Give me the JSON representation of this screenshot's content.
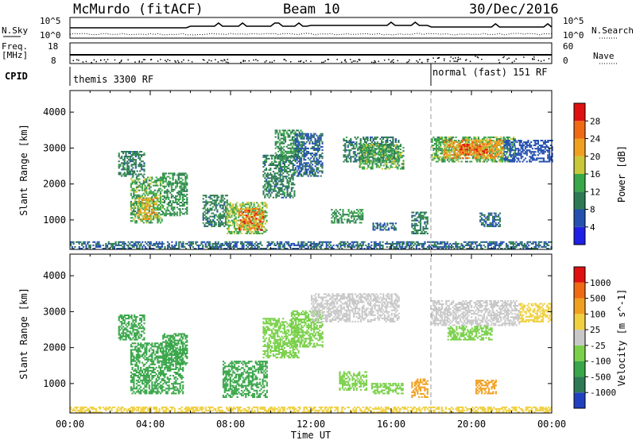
{
  "header": {
    "station": "McMurdo (fitACF)",
    "beam": "Beam 10",
    "date": "30/Dec/2016"
  },
  "top_panels": {
    "nsky_label": "N.Sky",
    "nsky_ticks": [
      "10^5",
      "10^0"
    ],
    "nsearch_label": "N.Search",
    "nsearch_ticks": [
      "10^5",
      "10^0"
    ],
    "freq_label_1": "Freq.",
    "freq_label_2": "[MHz]",
    "freq_ticks": [
      "18",
      "8"
    ],
    "nave_label": "Nave",
    "nave_ticks": [
      "60",
      "0"
    ],
    "cpid_label": "CPID",
    "cpid_segments": [
      {
        "text": "themis 3300 RF",
        "start_hour": 0
      },
      {
        "text": "normal (fast) 151 RF",
        "start_hour": 18
      }
    ]
  },
  "chart_data": [
    {
      "type": "heatmap",
      "panel": "Power",
      "xlabel": "",
      "ylabel": "Slant Range [km]",
      "x_range_hours": [
        0,
        24
      ],
      "ylim": [
        180,
        4600
      ],
      "y_ticks": [
        1000,
        2000,
        3000,
        4000
      ],
      "colorbar_label": "Power [dB]",
      "colorbar_ticks": [
        "4",
        "8",
        "12",
        "16",
        "20",
        "24",
        "28"
      ],
      "colorbar_colors": [
        "#1f1fe6",
        "#2450b0",
        "#2e7a55",
        "#3aa64a",
        "#c8c83a",
        "#f0a020",
        "#f06a14",
        "#e01010"
      ],
      "regions": [
        {
          "t0": 2.4,
          "t1": 3.7,
          "r0": 2200,
          "r1": 2900,
          "v": 10
        },
        {
          "t0": 3.0,
          "t1": 4.6,
          "r0": 900,
          "r1": 2200,
          "v": 14
        },
        {
          "t0": 3.4,
          "t1": 4.3,
          "r0": 1000,
          "r1": 1600,
          "v": 20
        },
        {
          "t0": 4.6,
          "t1": 5.8,
          "r0": 1100,
          "r1": 2300,
          "v": 12
        },
        {
          "t0": 6.6,
          "t1": 7.8,
          "r0": 800,
          "r1": 1700,
          "v": 10
        },
        {
          "t0": 7.8,
          "t1": 9.8,
          "r0": 600,
          "r1": 1500,
          "v": 16
        },
        {
          "t0": 8.4,
          "t1": 9.6,
          "r0": 700,
          "r1": 1300,
          "v": 24
        },
        {
          "t0": 9.6,
          "t1": 11.2,
          "r0": 1600,
          "r1": 2800,
          "v": 10
        },
        {
          "t0": 10.2,
          "t1": 11.6,
          "r0": 2700,
          "r1": 3500,
          "v": 12
        },
        {
          "t0": 11.2,
          "t1": 12.6,
          "r0": 2200,
          "r1": 3400,
          "v": 8
        },
        {
          "t0": 13.0,
          "t1": 14.6,
          "r0": 900,
          "r1": 1300,
          "v": 12
        },
        {
          "t0": 13.6,
          "t1": 16.4,
          "r0": 2600,
          "r1": 3300,
          "v": 10
        },
        {
          "t0": 14.4,
          "t1": 16.6,
          "r0": 2400,
          "r1": 3100,
          "v": 14
        },
        {
          "t0": 15.0,
          "t1": 16.2,
          "r0": 700,
          "r1": 900,
          "v": 8
        },
        {
          "t0": 17.0,
          "t1": 17.8,
          "r0": 600,
          "r1": 1200,
          "v": 10
        },
        {
          "t0": 18.0,
          "t1": 22.2,
          "r0": 2600,
          "r1": 3300,
          "v": 14
        },
        {
          "t0": 18.6,
          "t1": 21.6,
          "r0": 2700,
          "r1": 3200,
          "v": 22
        },
        {
          "t0": 19.4,
          "t1": 20.8,
          "r0": 2800,
          "r1": 3100,
          "v": 26
        },
        {
          "t0": 21.6,
          "t1": 24.0,
          "r0": 2600,
          "r1": 3200,
          "v": 6
        },
        {
          "t0": 20.4,
          "t1": 21.4,
          "r0": 800,
          "r1": 1200,
          "v": 8
        },
        {
          "t0": 0.0,
          "t1": 24.0,
          "r0": 180,
          "r1": 400,
          "v": 8
        }
      ]
    },
    {
      "type": "heatmap",
      "panel": "Velocity",
      "xlabel": "Time UT",
      "ylabel": "Slant Range [km]",
      "x_range_hours": [
        0,
        24
      ],
      "x_ticks": [
        "00:00",
        "04:00",
        "08:00",
        "12:00",
        "16:00",
        "20:00",
        "00:00"
      ],
      "ylim": [
        180,
        4600
      ],
      "y_ticks": [
        1000,
        2000,
        3000,
        4000
      ],
      "colorbar_label": "Velocity [m s^-1]",
      "colorbar_ticks": [
        "1000",
        "500",
        "100",
        "25",
        "-25",
        "-100",
        "-500",
        "-1000"
      ],
      "colorbar_colors": [
        "#2040c0",
        "#2e7a55",
        "#3aa64a",
        "#7ad04a",
        "#c8c8c8",
        "#f0d040",
        "#f0a020",
        "#f06a14",
        "#e01010"
      ],
      "regions": [
        {
          "t0": 2.4,
          "t1": 3.7,
          "r0": 2200,
          "r1": 2900,
          "v": 300
        },
        {
          "t0": 3.0,
          "t1": 5.6,
          "r0": 700,
          "r1": 2100,
          "v": 300
        },
        {
          "t0": 4.6,
          "t1": 5.8,
          "r0": 1500,
          "r1": 2400,
          "v": 150
        },
        {
          "t0": 7.6,
          "t1": 9.8,
          "r0": 600,
          "r1": 1600,
          "v": 300
        },
        {
          "t0": 9.6,
          "t1": 11.4,
          "r0": 1700,
          "r1": 2800,
          "v": 60
        },
        {
          "t0": 11.0,
          "t1": 12.6,
          "r0": 2000,
          "r1": 3000,
          "v": 60
        },
        {
          "t0": 12.0,
          "t1": 16.4,
          "r0": 2700,
          "r1": 3500,
          "v": 0
        },
        {
          "t0": 13.4,
          "t1": 14.8,
          "r0": 800,
          "r1": 1300,
          "v": 60
        },
        {
          "t0": 15.0,
          "t1": 16.6,
          "r0": 700,
          "r1": 1000,
          "v": 60
        },
        {
          "t0": 17.0,
          "t1": 17.8,
          "r0": 600,
          "r1": 1100,
          "v": -300
        },
        {
          "t0": 18.0,
          "t1": 22.4,
          "r0": 2600,
          "r1": 3300,
          "v": 0
        },
        {
          "t0": 18.8,
          "t1": 21.0,
          "r0": 2200,
          "r1": 2600,
          "v": 60
        },
        {
          "t0": 20.2,
          "t1": 21.2,
          "r0": 700,
          "r1": 1100,
          "v": -300
        },
        {
          "t0": 22.4,
          "t1": 24.0,
          "r0": 2700,
          "r1": 3200,
          "v": -60
        },
        {
          "t0": 0.0,
          "t1": 24.0,
          "r0": 180,
          "r1": 350,
          "v": -60
        }
      ]
    }
  ]
}
